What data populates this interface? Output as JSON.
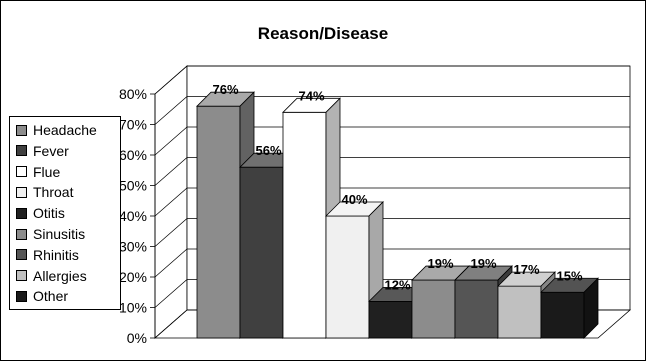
{
  "chart_data": {
    "type": "bar",
    "title": "Reason/Disease",
    "categories": [
      "Headache",
      "Fever",
      "Flue",
      "Throat",
      "Otitis",
      "Sinusitis",
      "Rhinitis",
      "Allergies",
      "Other"
    ],
    "values": [
      76,
      56,
      74,
      40,
      12,
      19,
      19,
      17,
      15
    ],
    "data_labels": [
      "76%",
      "56%",
      "74%",
      "40%",
      "12%",
      "19%",
      "19%",
      "17%",
      "15%"
    ],
    "colors": [
      "#8c8c8c",
      "#404040",
      "#ffffff",
      "#f0f0f0",
      "#202020",
      "#8c8c8c",
      "#555555",
      "#c0c0c0",
      "#1a1a1a"
    ],
    "ylim": [
      0,
      80
    ],
    "yticks": [
      "0%",
      "10%",
      "20%",
      "30%",
      "40%",
      "50%",
      "60%",
      "70%",
      "80%"
    ],
    "xlabel": "",
    "ylabel": "",
    "grid": true,
    "legend_position": "left"
  }
}
